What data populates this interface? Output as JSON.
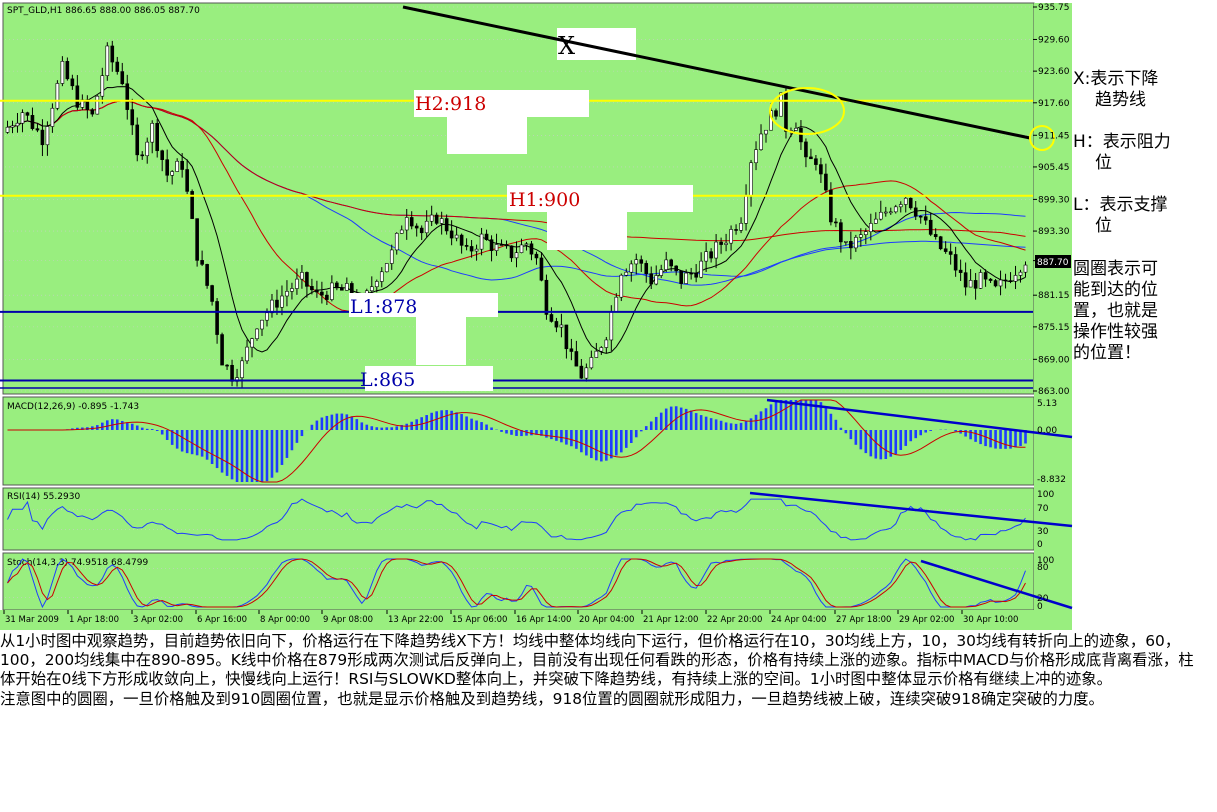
{
  "chart_data": {
    "type": "line",
    "symbol_header": "SPT_GLD,H1  886.65 888.00 886.05 887.70",
    "price_axis_ticks": [
      "935.75",
      "929.60",
      "923.60",
      "917.60",
      "911.45",
      "905.45",
      "899.30",
      "893.30",
      "887.70",
      "881.15",
      "875.15",
      "869.00",
      "863.00"
    ],
    "current_price_label": "887.70",
    "ylim": [
      863.0,
      935.75
    ],
    "x_labels": [
      "31 Mar 2009",
      "1 Apr 18:00",
      "3 Apr 02:00",
      "6 Apr 16:00",
      "8 Apr 00:00",
      "9 Apr 08:00",
      "13 Apr 22:00",
      "15 Apr 06:00",
      "16 Apr 14:00",
      "20 Apr 04:00",
      "21 Apr 12:00",
      "22 Apr 20:00",
      "24 Apr 04:00",
      "27 Apr 18:00",
      "29 Apr 02:00",
      "30 Apr 10:00"
    ],
    "grid": true,
    "price_path": [
      [
        0,
        912
      ],
      [
        4,
        916
      ],
      [
        8,
        911
      ],
      [
        12,
        924
      ],
      [
        15,
        918
      ],
      [
        18,
        915
      ],
      [
        21,
        927
      ],
      [
        24,
        922
      ],
      [
        27,
        907
      ],
      [
        30,
        913
      ],
      [
        33,
        904
      ],
      [
        36,
        906
      ],
      [
        39,
        889
      ],
      [
        42,
        880
      ],
      [
        44,
        869
      ],
      [
        46,
        866
      ],
      [
        48,
        868
      ],
      [
        51,
        876
      ],
      [
        54,
        879
      ],
      [
        57,
        882
      ],
      [
        60,
        884
      ],
      [
        63,
        881
      ],
      [
        66,
        882
      ],
      [
        69,
        882
      ],
      [
        72,
        879
      ],
      [
        75,
        885
      ],
      [
        78,
        889
      ],
      [
        81,
        897
      ],
      [
        84,
        893
      ],
      [
        87,
        896
      ],
      [
        90,
        893
      ],
      [
        93,
        889
      ],
      [
        96,
        892
      ],
      [
        99,
        890
      ],
      [
        102,
        889
      ],
      [
        105,
        891
      ],
      [
        107,
        888
      ],
      [
        109,
        879
      ],
      [
        112,
        875
      ],
      [
        114,
        869
      ],
      [
        116,
        866
      ],
      [
        118,
        868
      ],
      [
        121,
        874
      ],
      [
        124,
        886
      ],
      [
        127,
        888
      ],
      [
        130,
        884
      ],
      [
        133,
        887
      ],
      [
        136,
        884
      ],
      [
        139,
        886
      ],
      [
        142,
        889
      ],
      [
        145,
        892
      ],
      [
        148,
        896
      ],
      [
        150,
        907
      ],
      [
        152,
        912
      ],
      [
        154,
        915
      ],
      [
        156,
        918
      ],
      [
        157,
        913
      ],
      [
        159,
        914
      ],
      [
        161,
        906
      ],
      [
        163,
        907
      ],
      [
        166,
        896
      ],
      [
        169,
        890
      ],
      [
        172,
        892
      ],
      [
        175,
        895
      ],
      [
        178,
        898
      ],
      [
        181,
        900
      ],
      [
        184,
        896
      ],
      [
        187,
        891
      ],
      [
        190,
        888
      ],
      [
        193,
        883
      ],
      [
        196,
        884
      ],
      [
        199,
        882
      ],
      [
        202,
        885
      ],
      [
        205,
        888
      ]
    ],
    "horizontal_levels": [
      {
        "label": "H2:918",
        "value": 918,
        "color": "#ffff00"
      },
      {
        "label": "H1:900",
        "value": 900,
        "color": "#ffff00"
      },
      {
        "label": "L1:878",
        "value": 878,
        "color": "#0000aa"
      },
      {
        "label": "L:865",
        "value": 865,
        "color": "#0000aa"
      }
    ],
    "trendline_label": "X",
    "indicators": [
      {
        "name": "MACD",
        "header": "MACD(12,26,9) -0.895 -1.743",
        "ticks": [
          "5.13",
          "0.00",
          "-8.832"
        ]
      },
      {
        "name": "RSI",
        "header": "RSI(14) 55.2930",
        "ticks": [
          "100",
          "70",
          "30",
          "0"
        ]
      },
      {
        "name": "Stochastic",
        "header": "Stoch(14,3,3) 74.9518 68.4799",
        "ticks": [
          "100",
          "80",
          "20",
          "0"
        ]
      }
    ],
    "colors": {
      "background": "#99ee7f",
      "grid": "#cccccc",
      "trendline": "#000000",
      "resistance": "#ffff00",
      "support": "#0000aa",
      "ma_red": "#cc0000",
      "ma_blue": "#1e3cff",
      "ma_black": "#000000"
    }
  },
  "legend": {
    "x_line1": "X:表示下降",
    "x_line2": "趋势线",
    "h_line1": "H：表示阻力",
    "h_line2": "位",
    "l_line1": "L：表示支撑",
    "l_line2": "位",
    "c_line1": "圆圈表示可",
    "c_line2": "能到达的位",
    "c_line3": "置，也就是",
    "c_line4": "操作性较强",
    "c_line5": "的位置！"
  },
  "analysis": {
    "p1": "从1小时图中观察趋势，目前趋势依旧向下，价格运行在下降趋势线X下方！均线中整体均线向下运行，但价格运行在10，30均线上方，10，30均线有转折向上的迹象，60，100，200均线集中在890-895。K线中价格在879形成两次测试后反弹向上，目前没有出现任何看跌的形态，价格有持续上涨的迹象。指标中MACD与价格形成底背离看涨，柱体开始在0线下方形成收敛向上，快慢线向上运行！RSI与SLOWKD整体向上，并突破下降趋势线，有持续上涨的空间。1小时图中整体显示价格有继续上冲的迹象。",
    "p2": "注意图中的圆圈，一旦价格触及到910圆圈位置，也就是显示价格触及到趋势线，918位置的圆圈就形成阻力，一旦趋势线被上破，连续突破918确定突破的力度。"
  }
}
